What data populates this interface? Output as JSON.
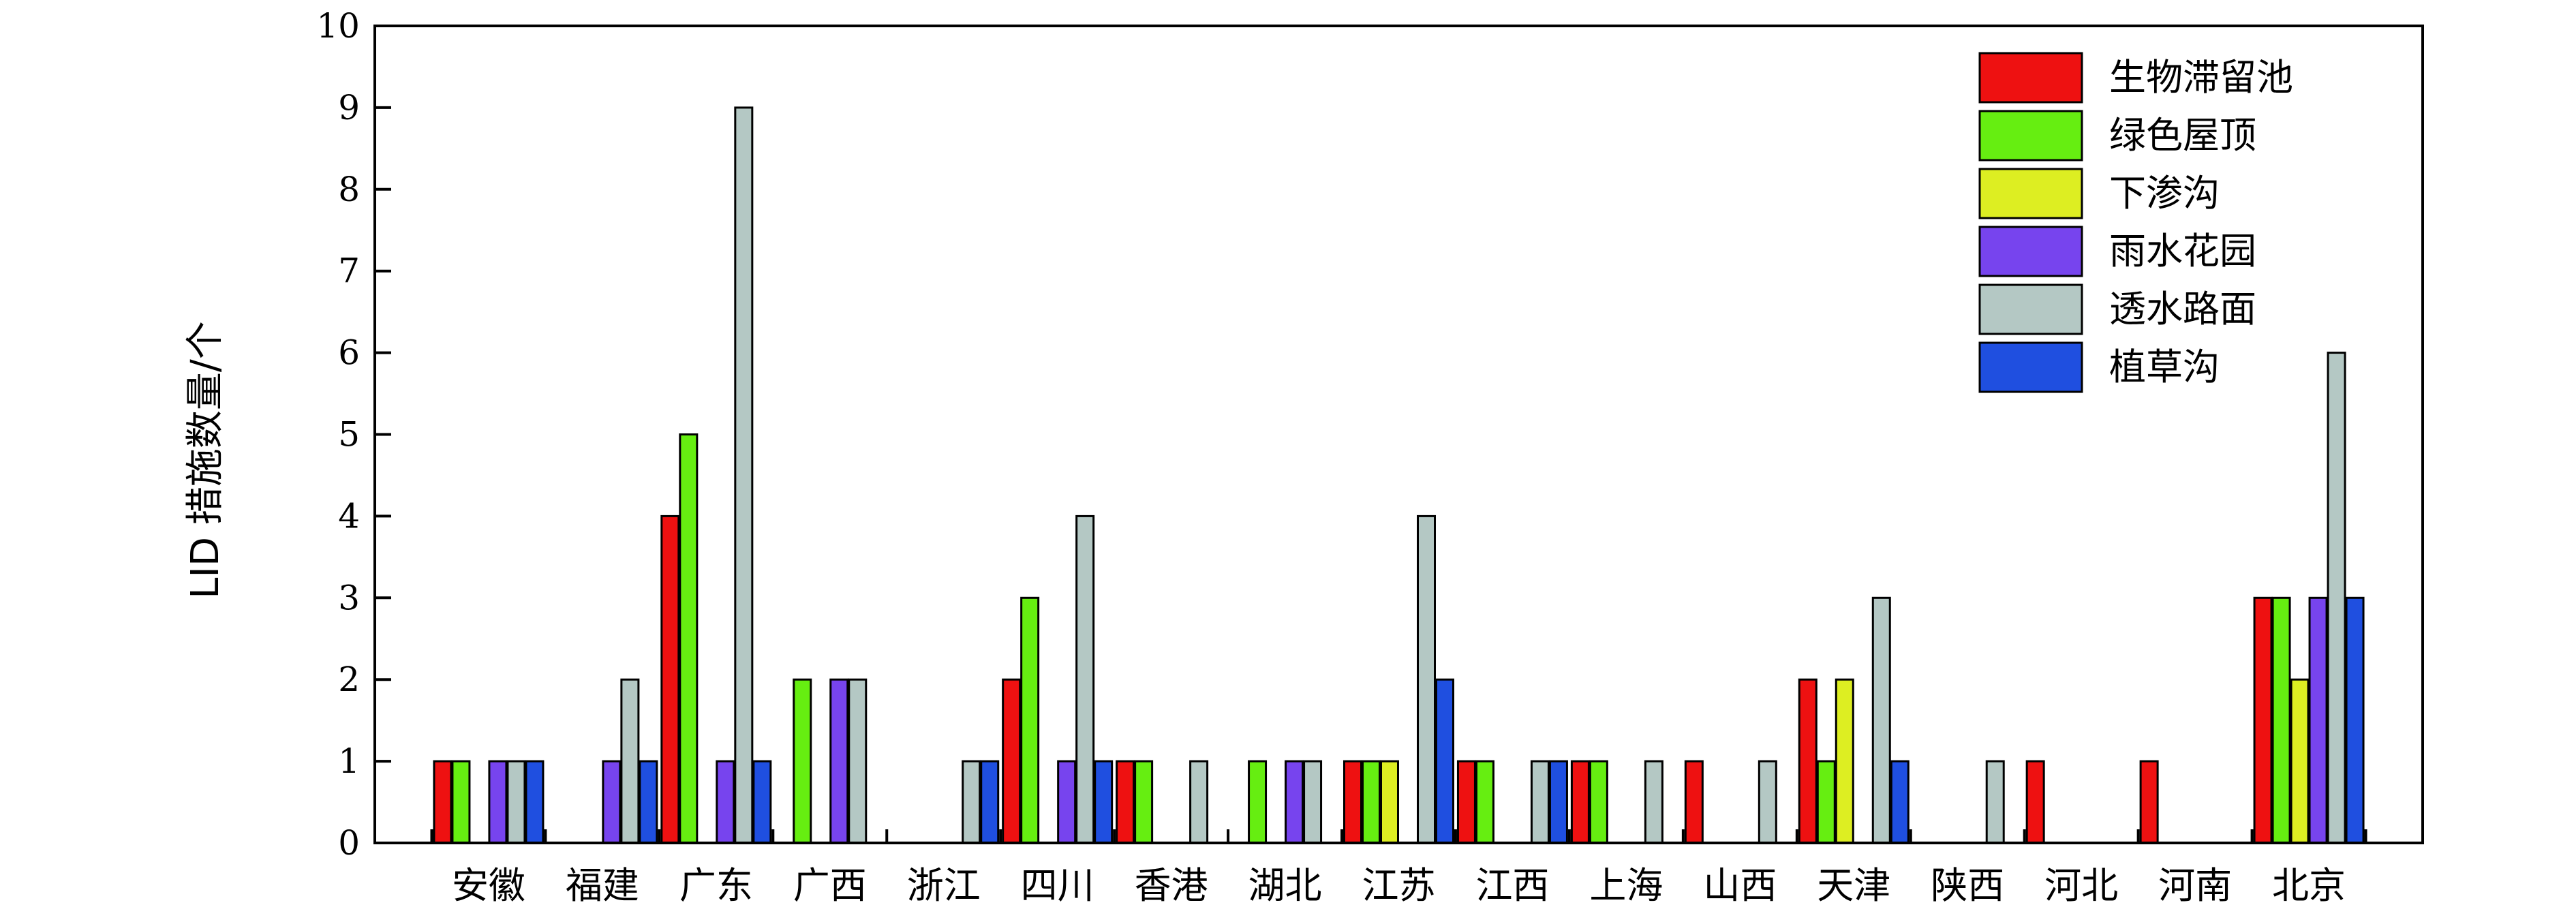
{
  "chart_data": {
    "type": "bar",
    "title": "",
    "xlabel": "",
    "ylabel": "LID 措施数量/个",
    "ylim": [
      0,
      10
    ],
    "yticks": [
      0,
      1,
      2,
      3,
      4,
      5,
      6,
      7,
      8,
      9,
      10
    ],
    "grid": false,
    "legend_position": "top-right",
    "categories": [
      "安徽",
      "福建",
      "广东",
      "广西",
      "浙江",
      "四川",
      "香港",
      "湖北",
      "江苏",
      "江西",
      "上海",
      "山西",
      "天津",
      "陕西",
      "河北",
      "河南",
      "北京"
    ],
    "series": [
      {
        "name": "生物滞留池",
        "color": "#ee1111",
        "values": [
          1,
          0,
          4,
          0,
          0,
          2,
          1,
          0,
          1,
          1,
          1,
          1,
          2,
          0,
          1,
          1,
          3
        ]
      },
      {
        "name": "绿色屋顶",
        "color": "#66ee11",
        "values": [
          1,
          0,
          5,
          2,
          0,
          3,
          1,
          1,
          1,
          1,
          1,
          0,
          1,
          0,
          0,
          0,
          3
        ]
      },
      {
        "name": "下渗沟",
        "color": "#ddee22",
        "values": [
          0,
          0,
          0,
          0,
          0,
          0,
          0,
          0,
          1,
          0,
          0,
          0,
          2,
          0,
          0,
          0,
          2
        ]
      },
      {
        "name": "雨水花园",
        "color": "#7744ee",
        "values": [
          1,
          1,
          1,
          2,
          0,
          1,
          0,
          1,
          0,
          0,
          0,
          0,
          0,
          0,
          0,
          0,
          3
        ]
      },
      {
        "name": "透水路面",
        "color": "#b4c8c4",
        "values": [
          1,
          2,
          9,
          2,
          1,
          4,
          1,
          1,
          4,
          1,
          1,
          1,
          3,
          1,
          0,
          0,
          6
        ]
      },
      {
        "name": "植草沟",
        "color": "#1f4fe0",
        "values": [
          1,
          1,
          1,
          0,
          1,
          1,
          0,
          0,
          2,
          1,
          0,
          0,
          1,
          0,
          0,
          0,
          3
        ]
      }
    ]
  }
}
